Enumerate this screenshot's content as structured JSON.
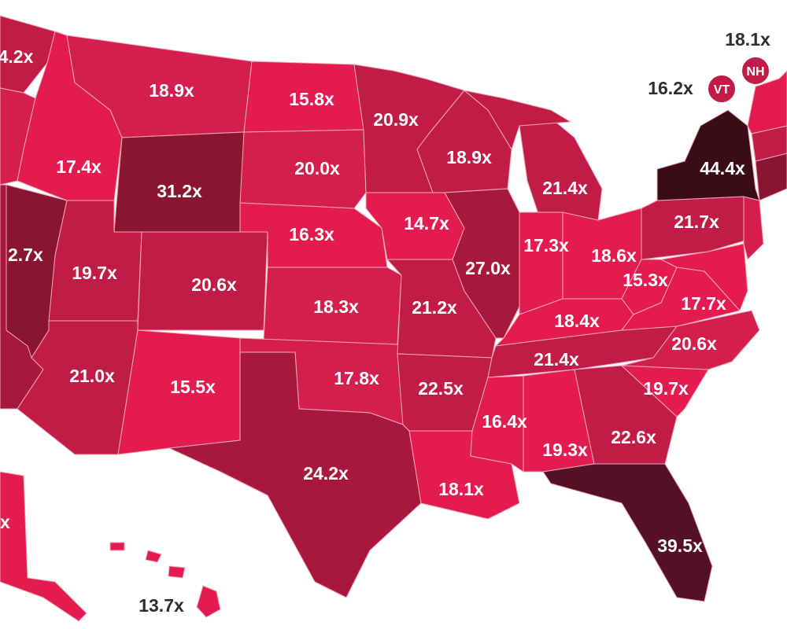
{
  "colors": {
    "background": "#ffffff",
    "level_light": "#e31b4f",
    "level_mid_light": "#d41f4c",
    "level_mid": "#c01c45",
    "level_mid_dark": "#a8183c",
    "level_dark": "#8a1531",
    "level_darkest": "#541024",
    "level_black": "#3a0c18",
    "label_outside": "#2e2e2e"
  },
  "states": {
    "WA": "4.2x",
    "OR": "",
    "CA": "",
    "NV": "2.7x",
    "ID": "17.4x",
    "MT": "18.9x",
    "WY": "31.2x",
    "UT": "19.7x",
    "AZ": "21.0x",
    "CO": "20.6x",
    "NM": "15.5x",
    "ND": "15.8x",
    "SD": "20.0x",
    "NE": "16.3x",
    "KS": "18.3x",
    "OK": "17.8x",
    "TX": "24.2x",
    "MN": "20.9x",
    "IA": "14.7x",
    "MO": "21.2x",
    "AR": "22.5x",
    "LA": "18.1x",
    "WI": "18.9x",
    "IL": "27.0x",
    "MI": "21.4x",
    "IN": "17.3x",
    "OH": "18.6x",
    "KY": "18.4x",
    "TN": "21.4x",
    "MS": "16.4x",
    "AL": "19.3x",
    "GA": "22.6x",
    "FL": "39.5x",
    "SC": "19.7x",
    "NC": "20.6x",
    "VA": "17.7x",
    "WV": "15.3x",
    "PA": "21.7x",
    "NY": "44.4x",
    "VT": "16.2x",
    "NH": "18.1x",
    "AK": "x",
    "HI": "13.7x"
  },
  "badges": {
    "VT": "VT",
    "NH": "NH"
  }
}
